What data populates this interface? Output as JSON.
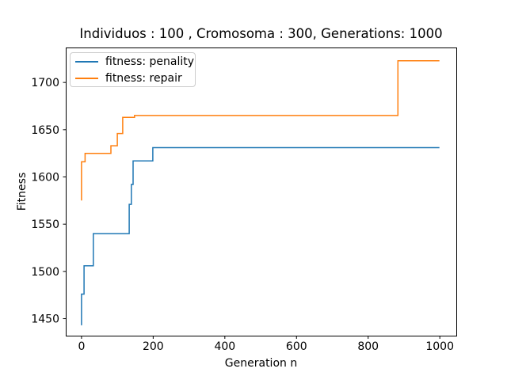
{
  "chart_data": {
    "type": "line",
    "line_style": "step",
    "title": "Individuos : 100 , Cromosoma : 300, Generations: 1000",
    "xlabel": "Generation n",
    "ylabel": "Fitness",
    "xlim": [
      -44,
      1046
    ],
    "ylim": [
      1432,
      1737
    ],
    "xticks": [
      0,
      200,
      400,
      600,
      800,
      1000
    ],
    "yticks": [
      1450,
      1500,
      1550,
      1600,
      1650,
      1700
    ],
    "grid": false,
    "legend_position": "upper-left",
    "axis_color": "#000000",
    "series": [
      {
        "name": "fitness: penality",
        "color": "#1f77b4",
        "points": [
          [
            0,
            1443
          ],
          [
            0,
            1476
          ],
          [
            7,
            1476
          ],
          [
            7,
            1506
          ],
          [
            33,
            1506
          ],
          [
            33,
            1540
          ],
          [
            133,
            1540
          ],
          [
            133,
            1571
          ],
          [
            139,
            1571
          ],
          [
            139,
            1592
          ],
          [
            144,
            1592
          ],
          [
            144,
            1617
          ],
          [
            199,
            1617
          ],
          [
            199,
            1631
          ],
          [
            999,
            1631
          ]
        ]
      },
      {
        "name": "fitness: repair",
        "color": "#ff7f0e",
        "points": [
          [
            0,
            1575
          ],
          [
            0,
            1616
          ],
          [
            10,
            1616
          ],
          [
            10,
            1625
          ],
          [
            82,
            1625
          ],
          [
            82,
            1633
          ],
          [
            100,
            1633
          ],
          [
            100,
            1646
          ],
          [
            115,
            1646
          ],
          [
            115,
            1663
          ],
          [
            148,
            1663
          ],
          [
            148,
            1665
          ],
          [
            883,
            1665
          ],
          [
            883,
            1723
          ],
          [
            999,
            1723
          ]
        ]
      }
    ]
  }
}
